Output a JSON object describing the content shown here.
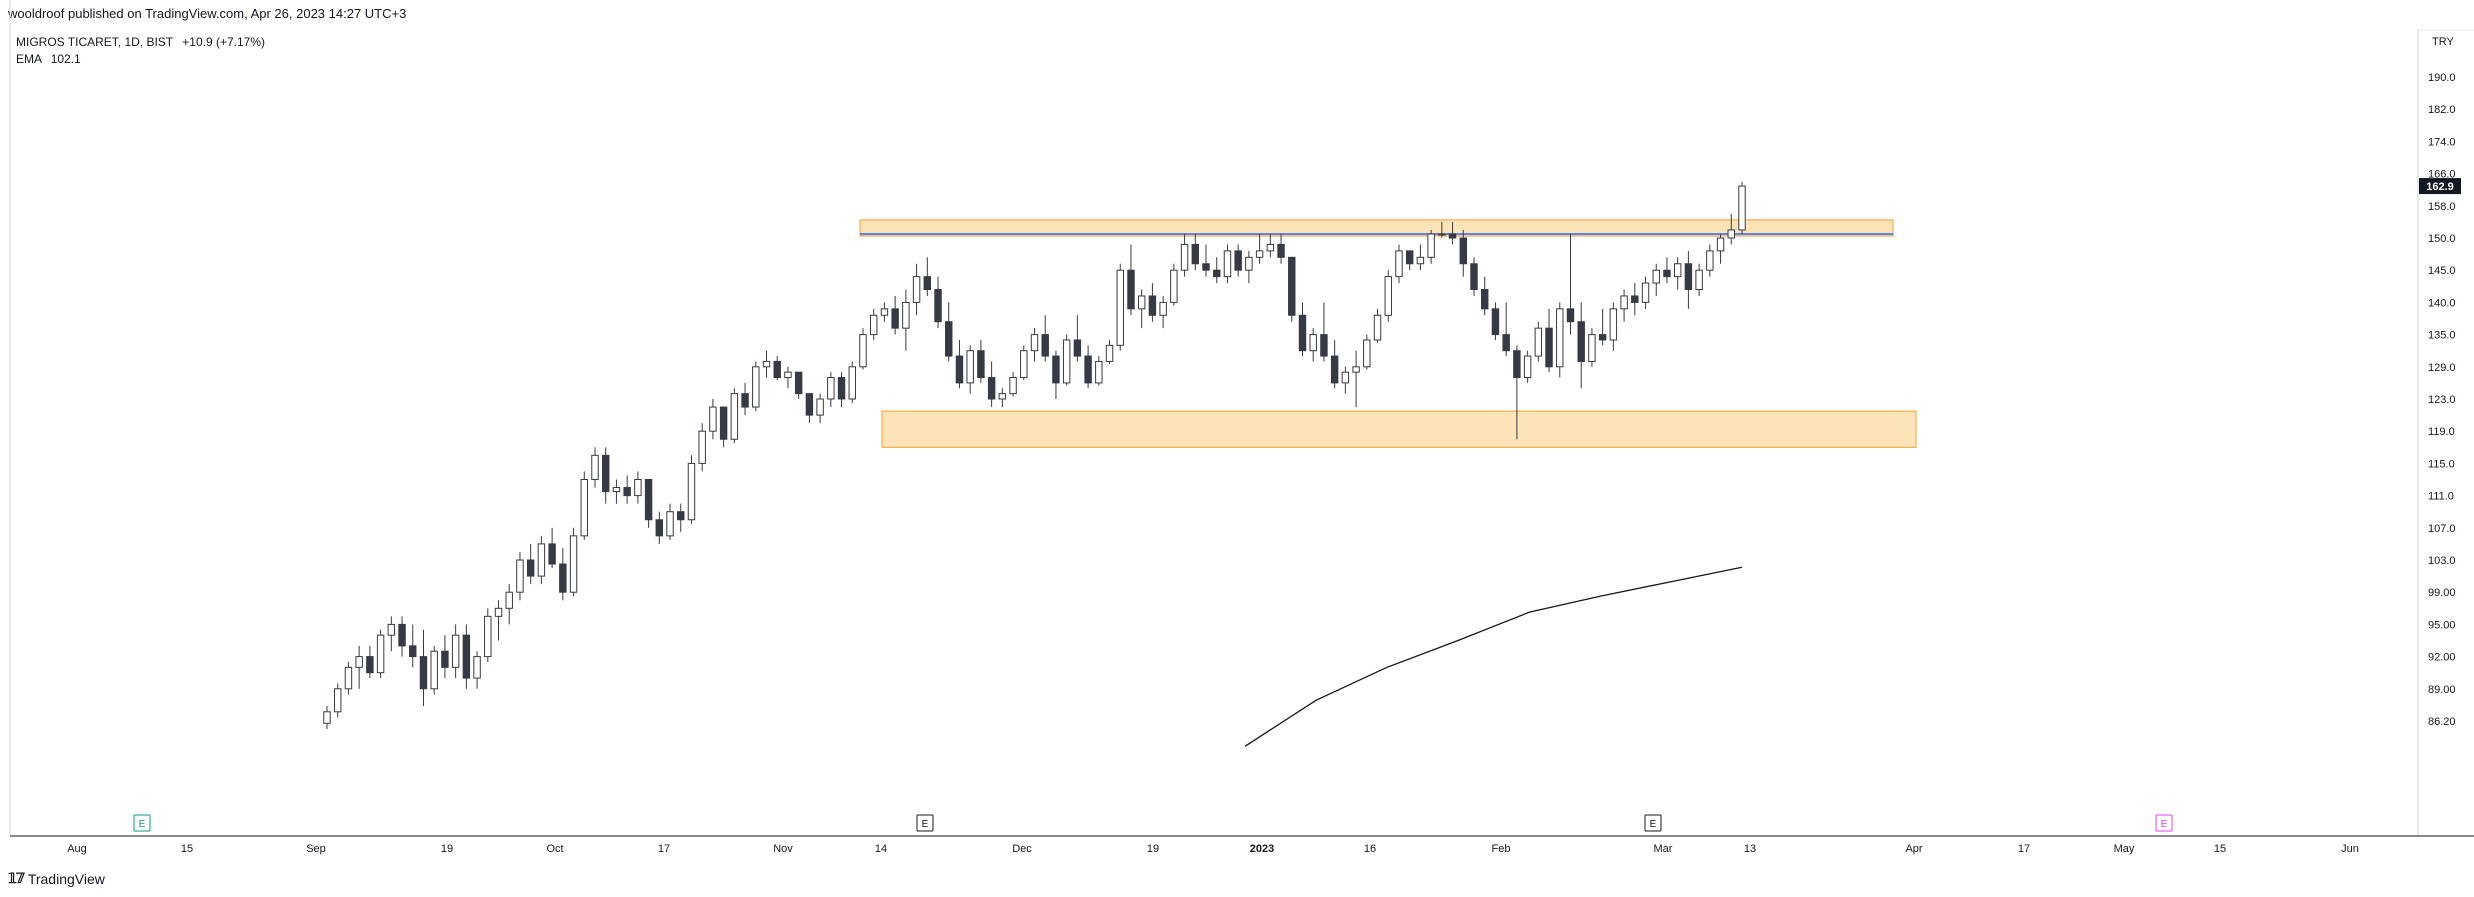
{
  "header": {
    "published": "wooldroof published on TradingView.com, Apr 26, 2023 14:27 UTC+3",
    "symbol_line": "MIGROS TICARET, 1D, BIST",
    "change": "+10.9 (+7.17%)",
    "ema_label": "EMA",
    "ema_value": "102.1"
  },
  "footer": {
    "brand": "TradingView"
  },
  "colors": {
    "up_body": "#ffffff",
    "down_body": "#363a45",
    "wick": "#363a45",
    "zone_fill": "#fde3b8",
    "zone_border": "#f0a030",
    "resistance_line": "#2962ff",
    "ema_line": "#131722",
    "earnings_green": "#089981",
    "earnings_dark": "#131722",
    "earnings_pink": "#e040fb"
  },
  "chart_data": {
    "type": "candlestick",
    "currency": "TRY",
    "last_price": "162.9",
    "y_ticks": [
      "190.0",
      "182.0",
      "174.0",
      "166.0",
      "158.0",
      "150.0",
      "145.0",
      "140.0",
      "135.0",
      "129.0",
      "123.0",
      "119.0",
      "115.0",
      "111.0",
      "107.0",
      "103.0",
      "99.00",
      "95.00",
      "92.00",
      "89.00",
      "86.20"
    ],
    "x_ticks": [
      "Aug",
      "15",
      "Sep",
      "19",
      "Oct",
      "17",
      "Nov",
      "14",
      "Dec",
      "19",
      "2023",
      "16",
      "Feb",
      "Mar",
      "13",
      "Apr",
      "17",
      "May",
      "15",
      "Jun"
    ],
    "zones": [
      {
        "name": "resistance-zone",
        "from": 150.5,
        "to": 154.5,
        "start": "Nov 8",
        "end": "Mar 30"
      },
      {
        "name": "support-zone",
        "from": 117,
        "to": 121.5,
        "start": "Nov 14",
        "end": "Apr 5"
      }
    ],
    "resistance_line": {
      "value": 151.0,
      "start": "Nov 8",
      "end": "Mar 30"
    },
    "earnings_markers": [
      {
        "label": "E",
        "date": "Aug 12",
        "color": "green"
      },
      {
        "label": "E",
        "date": "Nov 25",
        "color": "dark"
      },
      {
        "label": "E",
        "date": "Mar 9",
        "color": "dark"
      },
      {
        "label": "E",
        "date": "May 11",
        "color": "pink"
      }
    ],
    "ema": {
      "name": "EMA",
      "last": 102.1,
      "points": [
        [
          0,
          84
        ],
        [
          10,
          88
        ],
        [
          20,
          91
        ],
        [
          30,
          93.5
        ],
        [
          40,
          96.5
        ],
        [
          50,
          98.5
        ],
        [
          60,
          100.3
        ],
        [
          70,
          102.1
        ]
      ]
    },
    "candles": [
      [
        86,
        87.5,
        85.5,
        87
      ],
      [
        87,
        89.5,
        86.5,
        89
      ],
      [
        89,
        91.5,
        88.5,
        91
      ],
      [
        91,
        93,
        89,
        92
      ],
      [
        92,
        93,
        90,
        90.5
      ],
      [
        90.5,
        94.5,
        90,
        94
      ],
      [
        94,
        96,
        92.5,
        95
      ],
      [
        95,
        96,
        92,
        93
      ],
      [
        93,
        95,
        91,
        92
      ],
      [
        92,
        94.5,
        87.5,
        89
      ],
      [
        89,
        93,
        88.5,
        92.5
      ],
      [
        92.5,
        94,
        90,
        91
      ],
      [
        91,
        95,
        90,
        94
      ],
      [
        94,
        95,
        89,
        90
      ],
      [
        90,
        92.5,
        89,
        92
      ],
      [
        92,
        97,
        91.5,
        96
      ],
      [
        96,
        98,
        93.5,
        97
      ],
      [
        97,
        100,
        95,
        99
      ],
      [
        99,
        104,
        98,
        103
      ],
      [
        103,
        105,
        100,
        101
      ],
      [
        101,
        106,
        100,
        105
      ],
      [
        105,
        107,
        102,
        102.5
      ],
      [
        102.5,
        104.5,
        98,
        99
      ],
      [
        99,
        107,
        98.5,
        106
      ],
      [
        106,
        114,
        105.5,
        113
      ],
      [
        113,
        117,
        112,
        116
      ],
      [
        116,
        117,
        110,
        111.5
      ],
      [
        111.5,
        113,
        110,
        112
      ],
      [
        112,
        113.5,
        110,
        111
      ],
      [
        111,
        114,
        110,
        113
      ],
      [
        113,
        113,
        107,
        108
      ],
      [
        108,
        109,
        105,
        106
      ],
      [
        106,
        110,
        105.5,
        109
      ],
      [
        109,
        110,
        106.5,
        108
      ],
      [
        108,
        116,
        107.5,
        115
      ],
      [
        115,
        120,
        114,
        119
      ],
      [
        119,
        123,
        118,
        122
      ],
      [
        122,
        122,
        117,
        118
      ],
      [
        118,
        125,
        117.5,
        124
      ],
      [
        124,
        126,
        121,
        122
      ],
      [
        122,
        130,
        121.5,
        129
      ],
      [
        129,
        132,
        127,
        130
      ],
      [
        130,
        131,
        126.5,
        127
      ],
      [
        127,
        129,
        125,
        128
      ],
      [
        128,
        128,
        123,
        124
      ],
      [
        124,
        124,
        120,
        121
      ],
      [
        121,
        124,
        120,
        123
      ],
      [
        123,
        128,
        122,
        127
      ],
      [
        127,
        128,
        122,
        123
      ],
      [
        123,
        130,
        122.5,
        129
      ],
      [
        129,
        136,
        128.5,
        135
      ],
      [
        135,
        139,
        134,
        138
      ],
      [
        138,
        140,
        137,
        139
      ],
      [
        139,
        141,
        135,
        136
      ],
      [
        136,
        142,
        132,
        140
      ],
      [
        140,
        146,
        138,
        144
      ],
      [
        144,
        147,
        141,
        142
      ],
      [
        142,
        144,
        136,
        137
      ],
      [
        137,
        140,
        130,
        131
      ],
      [
        131,
        134,
        125,
        126
      ],
      [
        126,
        133,
        124,
        132
      ],
      [
        132,
        134,
        126,
        127
      ],
      [
        127,
        130,
        122,
        123
      ],
      [
        123,
        125,
        122,
        124
      ],
      [
        124,
        128,
        123.5,
        127
      ],
      [
        127,
        133,
        126.5,
        132
      ],
      [
        132,
        136,
        130,
        135
      ],
      [
        135,
        138,
        130,
        131
      ],
      [
        131,
        132,
        123,
        126
      ],
      [
        126,
        135,
        125.5,
        134
      ],
      [
        134,
        138,
        130,
        131
      ],
      [
        131,
        133,
        125,
        126
      ],
      [
        126,
        131,
        125.5,
        130
      ],
      [
        130,
        134,
        129.5,
        133
      ],
      [
        133,
        146,
        132,
        145
      ],
      [
        145,
        149,
        138,
        139
      ],
      [
        139,
        142,
        136,
        141
      ],
      [
        141,
        143,
        137,
        138
      ],
      [
        138,
        141,
        136,
        140
      ],
      [
        140,
        146,
        139.5,
        145
      ],
      [
        145,
        151,
        144,
        149
      ],
      [
        149,
        151,
        145,
        146
      ],
      [
        146,
        149,
        144,
        145
      ],
      [
        145,
        147,
        143,
        144
      ],
      [
        144,
        149,
        143,
        148
      ],
      [
        148,
        149,
        144,
        145
      ],
      [
        145,
        148,
        143,
        147
      ],
      [
        147,
        151,
        146,
        148
      ],
      [
        148,
        151,
        147,
        149
      ],
      [
        149,
        151,
        146,
        147
      ],
      [
        147,
        147,
        137,
        138
      ],
      [
        138,
        140,
        131,
        132
      ],
      [
        132,
        136,
        130,
        135
      ],
      [
        135,
        140,
        130,
        131
      ],
      [
        131,
        134,
        125,
        126
      ],
      [
        126,
        129,
        124,
        128
      ],
      [
        128,
        132,
        122,
        129
      ],
      [
        129,
        135,
        128.5,
        134
      ],
      [
        134,
        139,
        133.5,
        138
      ],
      [
        138,
        145,
        137,
        144
      ],
      [
        144,
        149,
        143,
        148
      ],
      [
        148,
        148,
        145,
        146
      ],
      [
        146,
        149,
        145,
        147
      ],
      [
        147,
        152,
        146,
        151
      ],
      [
        151,
        154,
        150,
        151
      ],
      [
        151,
        154,
        149,
        150
      ],
      [
        150,
        152,
        144,
        146
      ],
      [
        146,
        147,
        141,
        142
      ],
      [
        142,
        144,
        138,
        139
      ],
      [
        139,
        140,
        134,
        135
      ],
      [
        135,
        140,
        131,
        132
      ],
      [
        132,
        133,
        118,
        127
      ],
      [
        127,
        132,
        126,
        131
      ],
      [
        131,
        137,
        130,
        136
      ],
      [
        136,
        139,
        128,
        129
      ],
      [
        129,
        140,
        127,
        139
      ],
      [
        139,
        151,
        135,
        137
      ],
      [
        137,
        140,
        125,
        130
      ],
      [
        130,
        136,
        129,
        135
      ],
      [
        135,
        139,
        133,
        134
      ],
      [
        134,
        140,
        132,
        139
      ],
      [
        139,
        142,
        137,
        141
      ],
      [
        141,
        143,
        138,
        140
      ],
      [
        140,
        144,
        139,
        143
      ],
      [
        143,
        146,
        141,
        145
      ],
      [
        145,
        147,
        143,
        144
      ],
      [
        144,
        147,
        142,
        146
      ],
      [
        146,
        148,
        139,
        142
      ],
      [
        142,
        146,
        141,
        145
      ],
      [
        145,
        149,
        144,
        148
      ],
      [
        148,
        151,
        146,
        150
      ],
      [
        150,
        156,
        149,
        152
      ],
      [
        152,
        164,
        151,
        162.9
      ]
    ]
  }
}
